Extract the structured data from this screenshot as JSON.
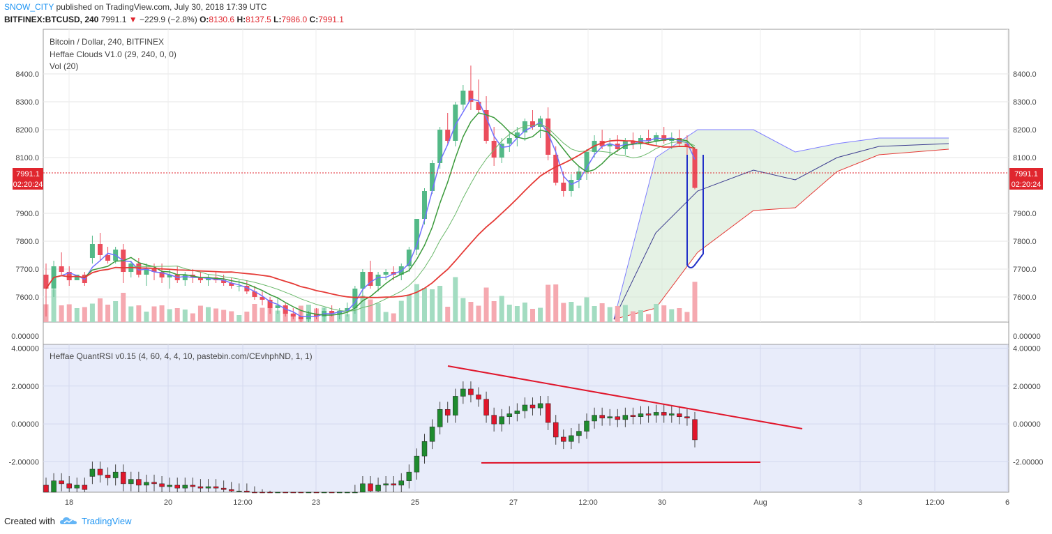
{
  "header": {
    "author": "SNOW_CITY",
    "published_text": "published on TradingView.com, July 30, 2018 17:39 UTC"
  },
  "ticker": {
    "symbol": "BITFINEX:BTCUSD, 240",
    "last": "7991.1",
    "change": "−229.9 (−2.8%)",
    "o_label": "O:",
    "o": "8130.6",
    "h_label": "H:",
    "h": "8137.5",
    "l_label": "L:",
    "l": "7986.0",
    "c_label": "C:",
    "c": "7991.1"
  },
  "legend": {
    "line1": "Bitcoin / Dollar, 240, BITFINEX",
    "line2": "Heffae Clouds V1.0 (29, 240, 0, 0)",
    "line3": "Vol (20)",
    "rsi": "Heffae QuantRSI v0.15 (4, 60, 4, 4, 10, pastebin.com/CEvhphND, 1, 1)"
  },
  "price_badge": {
    "price": "7991.1",
    "countdown": "02:20:24"
  },
  "footer": {
    "created": "Created with",
    "brand": "TradingView"
  },
  "colors": {
    "up": "#53b987",
    "down": "#eb4d5c",
    "up_rsi": "#1e8b2e",
    "down_rsi": "#e0162b",
    "blue": "#2130c8",
    "accent": "#2196f3"
  },
  "chart_data": [
    {
      "type": "candlestick",
      "title": "Bitcoin / Dollar, 240, BITFINEX",
      "x_ticks": [
        "18",
        "20",
        "12:00",
        "23",
        "25",
        "27",
        "12:00",
        "30",
        "Aug",
        "3",
        "12:00",
        "6"
      ],
      "y_ticks": [
        7600,
        7700,
        7800,
        7900,
        8100,
        8200,
        8300,
        8400
      ],
      "ylim": [
        7510,
        8560
      ],
      "last_price": 7991.1,
      "candles": [
        {
          "o": 7680,
          "h": 7720,
          "l": 7530,
          "c": 7630
        },
        {
          "o": 7630,
          "h": 7730,
          "l": 7600,
          "c": 7710
        },
        {
          "o": 7710,
          "h": 7760,
          "l": 7680,
          "c": 7690
        },
        {
          "o": 7690,
          "h": 7710,
          "l": 7640,
          "c": 7660
        },
        {
          "o": 7660,
          "h": 7680,
          "l": 7670,
          "c": 7680
        },
        {
          "o": 7680,
          "h": 7690,
          "l": 7640,
          "c": 7650
        },
        {
          "o": 7740,
          "h": 7820,
          "l": 7720,
          "c": 7790
        },
        {
          "o": 7790,
          "h": 7830,
          "l": 7730,
          "c": 7750
        },
        {
          "o": 7750,
          "h": 7780,
          "l": 7720,
          "c": 7730
        },
        {
          "o": 7730,
          "h": 7780,
          "l": 7720,
          "c": 7770
        },
        {
          "o": 7770,
          "h": 7790,
          "l": 7650,
          "c": 7690
        },
        {
          "o": 7690,
          "h": 7730,
          "l": 7670,
          "c": 7720
        },
        {
          "o": 7720,
          "h": 7740,
          "l": 7670,
          "c": 7680
        },
        {
          "o": 7680,
          "h": 7720,
          "l": 7640,
          "c": 7700
        },
        {
          "o": 7700,
          "h": 7720,
          "l": 7660,
          "c": 7690
        },
        {
          "o": 7690,
          "h": 7720,
          "l": 7650,
          "c": 7670
        },
        {
          "o": 7670,
          "h": 7700,
          "l": 7630,
          "c": 7680
        },
        {
          "o": 7680,
          "h": 7710,
          "l": 7650,
          "c": 7660
        },
        {
          "o": 7660,
          "h": 7690,
          "l": 7640,
          "c": 7680
        },
        {
          "o": 7680,
          "h": 7700,
          "l": 7650,
          "c": 7670
        },
        {
          "o": 7670,
          "h": 7690,
          "l": 7650,
          "c": 7660
        },
        {
          "o": 7660,
          "h": 7680,
          "l": 7640,
          "c": 7670
        },
        {
          "o": 7670,
          "h": 7690,
          "l": 7650,
          "c": 7660
        },
        {
          "o": 7660,
          "h": 7680,
          "l": 7640,
          "c": 7650
        },
        {
          "o": 7650,
          "h": 7670,
          "l": 7630,
          "c": 7640
        },
        {
          "o": 7640,
          "h": 7660,
          "l": 7620,
          "c": 7640
        },
        {
          "o": 7640,
          "h": 7660,
          "l": 7610,
          "c": 7620
        },
        {
          "o": 7620,
          "h": 7640,
          "l": 7590,
          "c": 7600
        },
        {
          "o": 7600,
          "h": 7620,
          "l": 7570,
          "c": 7590
        },
        {
          "o": 7590,
          "h": 7600,
          "l": 7540,
          "c": 7560
        },
        {
          "o": 7560,
          "h": 7600,
          "l": 7540,
          "c": 7570
        },
        {
          "o": 7570,
          "h": 7580,
          "l": 7530,
          "c": 7540
        },
        {
          "o": 7540,
          "h": 7560,
          "l": 7520,
          "c": 7530
        },
        {
          "o": 7530,
          "h": 7550,
          "l": 7510,
          "c": 7520
        },
        {
          "o": 7520,
          "h": 7550,
          "l": 7510,
          "c": 7540
        },
        {
          "o": 7540,
          "h": 7560,
          "l": 7520,
          "c": 7530
        },
        {
          "o": 7530,
          "h": 7560,
          "l": 7510,
          "c": 7550
        },
        {
          "o": 7550,
          "h": 7570,
          "l": 7530,
          "c": 7540
        },
        {
          "o": 7540,
          "h": 7560,
          "l": 7520,
          "c": 7550
        },
        {
          "o": 7550,
          "h": 7580,
          "l": 7530,
          "c": 7560
        },
        {
          "o": 7560,
          "h": 7640,
          "l": 7540,
          "c": 7630
        },
        {
          "o": 7630,
          "h": 7700,
          "l": 7600,
          "c": 7690
        },
        {
          "o": 7690,
          "h": 7730,
          "l": 7630,
          "c": 7640
        },
        {
          "o": 7640,
          "h": 7690,
          "l": 7620,
          "c": 7680
        },
        {
          "o": 7680,
          "h": 7700,
          "l": 7660,
          "c": 7690
        },
        {
          "o": 7690,
          "h": 7710,
          "l": 7660,
          "c": 7680
        },
        {
          "o": 7680,
          "h": 7720,
          "l": 7660,
          "c": 7710
        },
        {
          "o": 7710,
          "h": 7780,
          "l": 7690,
          "c": 7770
        },
        {
          "o": 7770,
          "h": 7880,
          "l": 7750,
          "c": 7880
        },
        {
          "o": 7880,
          "h": 7990,
          "l": 7860,
          "c": 7980
        },
        {
          "o": 7980,
          "h": 8090,
          "l": 7970,
          "c": 8080
        },
        {
          "o": 8080,
          "h": 8210,
          "l": 8060,
          "c": 8200
        },
        {
          "o": 8200,
          "h": 8260,
          "l": 8150,
          "c": 8160
        },
        {
          "o": 8160,
          "h": 8300,
          "l": 8140,
          "c": 8290
        },
        {
          "o": 8290,
          "h": 8360,
          "l": 8270,
          "c": 8340
        },
        {
          "o": 8340,
          "h": 8430,
          "l": 8270,
          "c": 8300
        },
        {
          "o": 8300,
          "h": 8380,
          "l": 8260,
          "c": 8270
        },
        {
          "o": 8270,
          "h": 8320,
          "l": 8150,
          "c": 8160
        },
        {
          "o": 8160,
          "h": 8210,
          "l": 8070,
          "c": 8100
        },
        {
          "o": 8100,
          "h": 8170,
          "l": 8080,
          "c": 8150
        },
        {
          "o": 8150,
          "h": 8190,
          "l": 8120,
          "c": 8170
        },
        {
          "o": 8170,
          "h": 8210,
          "l": 8140,
          "c": 8190
        },
        {
          "o": 8190,
          "h": 8240,
          "l": 8160,
          "c": 8230
        },
        {
          "o": 8230,
          "h": 8270,
          "l": 8200,
          "c": 8210
        },
        {
          "o": 8210,
          "h": 8250,
          "l": 8170,
          "c": 8240
        },
        {
          "o": 8240,
          "h": 8280,
          "l": 8090,
          "c": 8110
        },
        {
          "o": 8110,
          "h": 8140,
          "l": 8000,
          "c": 8010
        },
        {
          "o": 8010,
          "h": 8050,
          "l": 7960,
          "c": 7980
        },
        {
          "o": 7980,
          "h": 8040,
          "l": 7960,
          "c": 8020
        },
        {
          "o": 8020,
          "h": 8070,
          "l": 7990,
          "c": 8050
        },
        {
          "o": 8050,
          "h": 8130,
          "l": 8020,
          "c": 8120
        },
        {
          "o": 8120,
          "h": 8180,
          "l": 8100,
          "c": 8160
        },
        {
          "o": 8160,
          "h": 8200,
          "l": 8130,
          "c": 8140
        },
        {
          "o": 8140,
          "h": 8170,
          "l": 8110,
          "c": 8150
        },
        {
          "o": 8150,
          "h": 8180,
          "l": 8120,
          "c": 8130
        },
        {
          "o": 8130,
          "h": 8170,
          "l": 8110,
          "c": 8160
        },
        {
          "o": 8160,
          "h": 8190,
          "l": 8130,
          "c": 8150
        },
        {
          "o": 8150,
          "h": 8180,
          "l": 8130,
          "c": 8170
        },
        {
          "o": 8170,
          "h": 8200,
          "l": 8150,
          "c": 8160
        },
        {
          "o": 8160,
          "h": 8190,
          "l": 8140,
          "c": 8180
        },
        {
          "o": 8180,
          "h": 8210,
          "l": 8150,
          "c": 8160
        },
        {
          "o": 8160,
          "h": 8190,
          "l": 8130,
          "c": 8170
        },
        {
          "o": 8170,
          "h": 8200,
          "l": 8140,
          "c": 8150
        },
        {
          "o": 8150,
          "h": 8180,
          "l": 8100,
          "c": 8140
        },
        {
          "o": 8130.6,
          "h": 8137.5,
          "l": 7986.0,
          "c": 7991.1
        }
      ]
    },
    {
      "type": "candlestick",
      "title": "Heffae QuantRSI v0.15 (4, 60, 4, 4, 10, pastebin.com/CEvhphND, 1, 1)",
      "y_ticks": [
        -2,
        0,
        2,
        4
      ],
      "ylim": [
        -3.6,
        4.2
      ],
      "trendline_points": [
        [
          -1.8,
          3.1
        ],
        [
          -0.4,
          1.8
        ],
        [
          0.0,
          0.0
        ]
      ]
    }
  ]
}
